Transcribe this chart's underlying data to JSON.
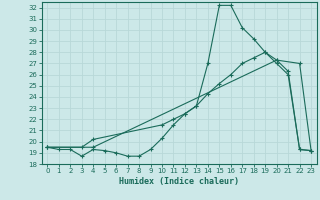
{
  "xlabel": "Humidex (Indice chaleur)",
  "bg_color": "#cce8e8",
  "grid_color": "#b0d0d0",
  "line_color": "#1a6b5a",
  "xlim": [
    -0.5,
    23.5
  ],
  "ylim": [
    18,
    32.5
  ],
  "xticks": [
    0,
    1,
    2,
    3,
    4,
    5,
    6,
    7,
    8,
    9,
    10,
    11,
    12,
    13,
    14,
    15,
    16,
    17,
    18,
    19,
    20,
    21,
    22,
    23
  ],
  "yticks": [
    18,
    19,
    20,
    21,
    22,
    23,
    24,
    25,
    26,
    27,
    28,
    29,
    30,
    31,
    32
  ],
  "line1_x": [
    0,
    1,
    2,
    3,
    4,
    5,
    6,
    7,
    8,
    9,
    10,
    11,
    12,
    13,
    14,
    15,
    16,
    17,
    18,
    19,
    20,
    21,
    22,
    23
  ],
  "line1_y": [
    19.5,
    19.3,
    19.3,
    18.7,
    19.3,
    19.2,
    19.0,
    18.7,
    18.7,
    19.3,
    20.3,
    21.5,
    22.5,
    23.2,
    27.0,
    32.2,
    32.2,
    30.2,
    29.2,
    28.0,
    27.0,
    26.0,
    19.3,
    19.2
  ],
  "line2_x": [
    0,
    3,
    4,
    10,
    11,
    12,
    13,
    14,
    15,
    16,
    17,
    18,
    19,
    20,
    21,
    22,
    23
  ],
  "line2_y": [
    19.5,
    19.5,
    20.2,
    21.5,
    22.0,
    22.5,
    23.2,
    24.3,
    25.2,
    26.0,
    27.0,
    27.5,
    28.0,
    27.3,
    26.3,
    19.3,
    19.2
  ],
  "line3_x": [
    0,
    4,
    20,
    22,
    23
  ],
  "line3_y": [
    19.5,
    19.5,
    27.3,
    27.0,
    19.2
  ]
}
